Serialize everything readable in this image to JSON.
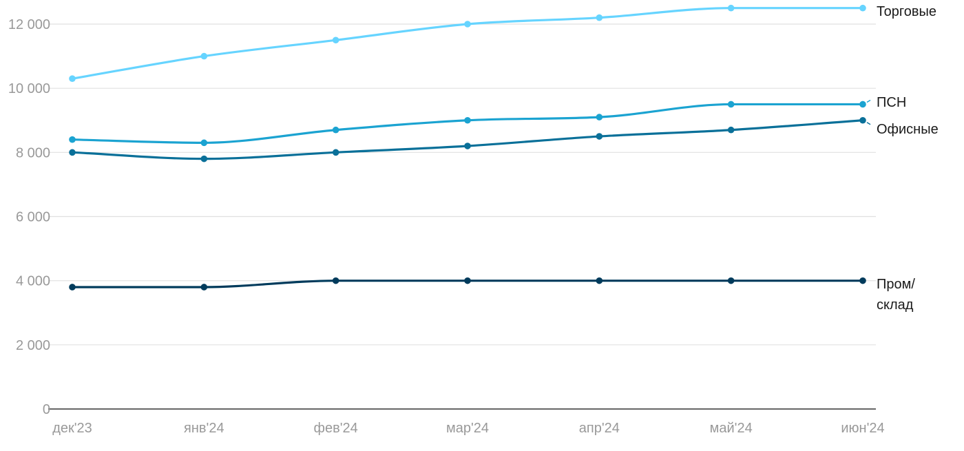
{
  "chart_data": {
    "type": "line",
    "title": "",
    "xlabel": "",
    "ylabel": "",
    "categories": [
      "дек'23",
      "янв'24",
      "фев'24",
      "мар'24",
      "апр'24",
      "май'24",
      "июн'24"
    ],
    "ylim": [
      0,
      12000
    ],
    "yticks": [
      0,
      2000,
      4000,
      6000,
      8000,
      10000,
      12000
    ],
    "ytick_labels": [
      "0",
      "2 000",
      "4 000",
      "6 000",
      "8 000",
      "10 000",
      "12 000"
    ],
    "grid": true,
    "legend": "direct labels at right end",
    "series": [
      {
        "name": "Торговые",
        "label_lines": [
          "Торговые"
        ],
        "color": "#66d4ff",
        "values": [
          10300,
          11000,
          11500,
          12000,
          12200,
          12500,
          12500
        ]
      },
      {
        "name": "ПСН",
        "label_lines": [
          "ПСН"
        ],
        "color": "#1ba3d1",
        "values": [
          8400,
          8300,
          8700,
          9000,
          9100,
          9500,
          9500
        ]
      },
      {
        "name": "Офисные",
        "label_lines": [
          "Офисные"
        ],
        "color": "#0a7099",
        "values": [
          8000,
          7800,
          8000,
          8200,
          8500,
          8700,
          9000
        ]
      },
      {
        "name": "Пром/склад",
        "label_lines": [
          "Пром/",
          "склад"
        ],
        "color": "#003b5c",
        "values": [
          3800,
          3800,
          4000,
          4000,
          4000,
          4000,
          4000
        ]
      }
    ]
  }
}
